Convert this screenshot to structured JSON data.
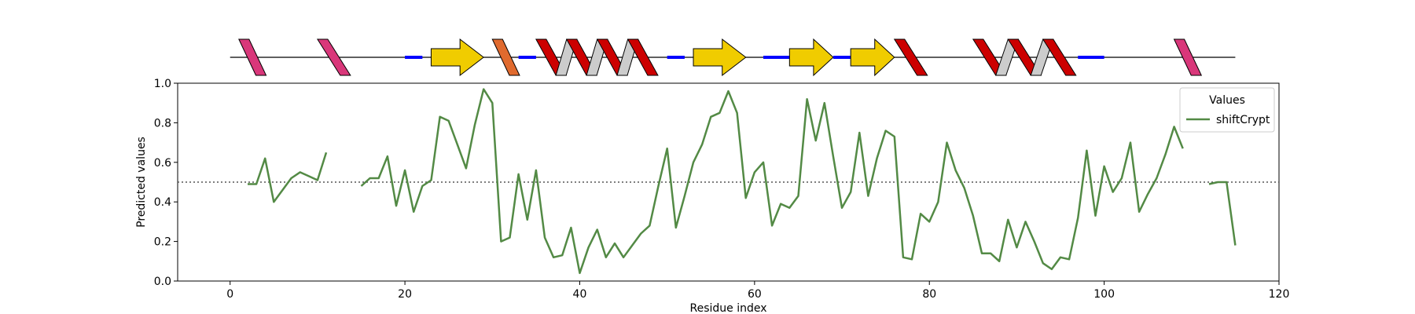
{
  "chart_data": {
    "type": "line",
    "xlabel": "Residue index",
    "ylabel": "Predicted values",
    "xlim": [
      -6,
      120
    ],
    "ylim": [
      0.0,
      1.0
    ],
    "x_ticks": [
      "0",
      "20",
      "40",
      "60",
      "80",
      "100",
      "120"
    ],
    "y_ticks": [
      "0.0",
      "0.2",
      "0.4",
      "0.6",
      "0.8",
      "1.0"
    ],
    "threshold": 0.5,
    "grid": false,
    "legend": {
      "title": "Values",
      "placement": "top-right"
    },
    "series": [
      {
        "name": "shiftCrypt",
        "color": "#538a45",
        "points": [
          [
            2,
            0.49
          ],
          [
            3,
            0.49
          ],
          [
            4,
            0.62
          ],
          [
            5,
            0.4
          ],
          [
            6,
            0.46
          ],
          [
            7,
            0.52
          ],
          [
            8,
            0.55
          ],
          [
            9,
            0.53
          ],
          [
            10,
            0.51
          ],
          [
            11,
            0.65
          ],
          [
            15,
            0.48
          ],
          [
            16,
            0.52
          ],
          [
            17,
            0.52
          ],
          [
            18,
            0.63
          ],
          [
            19,
            0.38
          ],
          [
            20,
            0.56
          ],
          [
            21,
            0.35
          ],
          [
            22,
            0.48
          ],
          [
            23,
            0.51
          ],
          [
            24,
            0.83
          ],
          [
            25,
            0.81
          ],
          [
            26,
            0.69
          ],
          [
            27,
            0.57
          ],
          [
            28,
            0.79
          ],
          [
            29,
            0.97
          ],
          [
            30,
            0.9
          ],
          [
            31,
            0.2
          ],
          [
            32,
            0.22
          ],
          [
            33,
            0.54
          ],
          [
            34,
            0.31
          ],
          [
            35,
            0.56
          ],
          [
            36,
            0.22
          ],
          [
            37,
            0.12
          ],
          [
            38,
            0.13
          ],
          [
            39,
            0.27
          ],
          [
            40,
            0.04
          ],
          [
            41,
            0.17
          ],
          [
            42,
            0.26
          ],
          [
            43,
            0.12
          ],
          [
            44,
            0.19
          ],
          [
            45,
            0.12
          ],
          [
            46,
            0.18
          ],
          [
            47,
            0.24
          ],
          [
            48,
            0.28
          ],
          [
            49,
            0.48
          ],
          [
            50,
            0.67
          ],
          [
            51,
            0.27
          ],
          [
            52,
            0.43
          ],
          [
            53,
            0.6
          ],
          [
            54,
            0.69
          ],
          [
            55,
            0.83
          ],
          [
            56,
            0.85
          ],
          [
            57,
            0.96
          ],
          [
            58,
            0.85
          ],
          [
            59,
            0.42
          ],
          [
            60,
            0.55
          ],
          [
            61,
            0.6
          ],
          [
            62,
            0.28
          ],
          [
            63,
            0.39
          ],
          [
            64,
            0.37
          ],
          [
            65,
            0.43
          ],
          [
            66,
            0.92
          ],
          [
            67,
            0.71
          ],
          [
            68,
            0.9
          ],
          [
            69,
            0.63
          ],
          [
            70,
            0.37
          ],
          [
            71,
            0.45
          ],
          [
            72,
            0.75
          ],
          [
            73,
            0.43
          ],
          [
            74,
            0.62
          ],
          [
            75,
            0.76
          ],
          [
            76,
            0.73
          ],
          [
            77,
            0.12
          ],
          [
            78,
            0.11
          ],
          [
            79,
            0.34
          ],
          [
            80,
            0.3
          ],
          [
            81,
            0.4
          ],
          [
            82,
            0.7
          ],
          [
            83,
            0.56
          ],
          [
            84,
            0.47
          ],
          [
            85,
            0.33
          ],
          [
            86,
            0.14
          ],
          [
            87,
            0.14
          ],
          [
            88,
            0.1
          ],
          [
            89,
            0.31
          ],
          [
            90,
            0.17
          ],
          [
            91,
            0.3
          ],
          [
            92,
            0.2
          ],
          [
            93,
            0.09
          ],
          [
            94,
            0.06
          ],
          [
            95,
            0.12
          ],
          [
            96,
            0.11
          ],
          [
            97,
            0.32
          ],
          [
            98,
            0.66
          ],
          [
            99,
            0.33
          ],
          [
            100,
            0.58
          ],
          [
            101,
            0.45
          ],
          [
            102,
            0.52
          ],
          [
            103,
            0.7
          ],
          [
            104,
            0.35
          ],
          [
            105,
            0.44
          ],
          [
            106,
            0.52
          ],
          [
            107,
            0.64
          ],
          [
            108,
            0.78
          ],
          [
            109,
            0.67
          ]
        ],
        "points_tail": [
          [
            112,
            0.49
          ],
          [
            113,
            0.5
          ],
          [
            114,
            0.5
          ],
          [
            115,
            0.18
          ]
        ]
      }
    ],
    "secondary_structure": {
      "backbone_x": [
        0,
        115
      ],
      "elements": [
        {
          "type": "helix",
          "start": 1,
          "end": 4,
          "color": "#d9377a"
        },
        {
          "type": "helix",
          "start": 10,
          "end": 14,
          "color": "#d9377a"
        },
        {
          "type": "coil",
          "start": 20,
          "end": 22,
          "color": "#0000ff"
        },
        {
          "type": "strand",
          "start": 23,
          "end": 29,
          "color": "#f0cc00"
        },
        {
          "type": "helix",
          "start": 30,
          "end": 33,
          "color": "#e06a2e"
        },
        {
          "type": "coil",
          "start": 33,
          "end": 35,
          "color": "#0000ff"
        },
        {
          "type": "helix",
          "start": 35,
          "end": 49,
          "color": "#cc0000"
        },
        {
          "type": "coil",
          "start": 50,
          "end": 52,
          "color": "#0000ff"
        },
        {
          "type": "strand",
          "start": 53,
          "end": 59,
          "color": "#f0cc00"
        },
        {
          "type": "coil",
          "start": 61,
          "end": 64,
          "color": "#0000ff"
        },
        {
          "type": "strand",
          "start": 64,
          "end": 69,
          "color": "#f0cc00"
        },
        {
          "type": "coil",
          "start": 69,
          "end": 71,
          "color": "#0000ff"
        },
        {
          "type": "strand",
          "start": 71,
          "end": 76,
          "color": "#f0cc00"
        },
        {
          "type": "helix",
          "start": 76,
          "end": 80,
          "color": "#cc0000"
        },
        {
          "type": "helix",
          "start": 85,
          "end": 97,
          "color": "#cc0000"
        },
        {
          "type": "coil",
          "start": 97,
          "end": 100,
          "color": "#0000ff"
        },
        {
          "type": "helix",
          "start": 108,
          "end": 111,
          "color": "#d9377a"
        }
      ]
    }
  }
}
